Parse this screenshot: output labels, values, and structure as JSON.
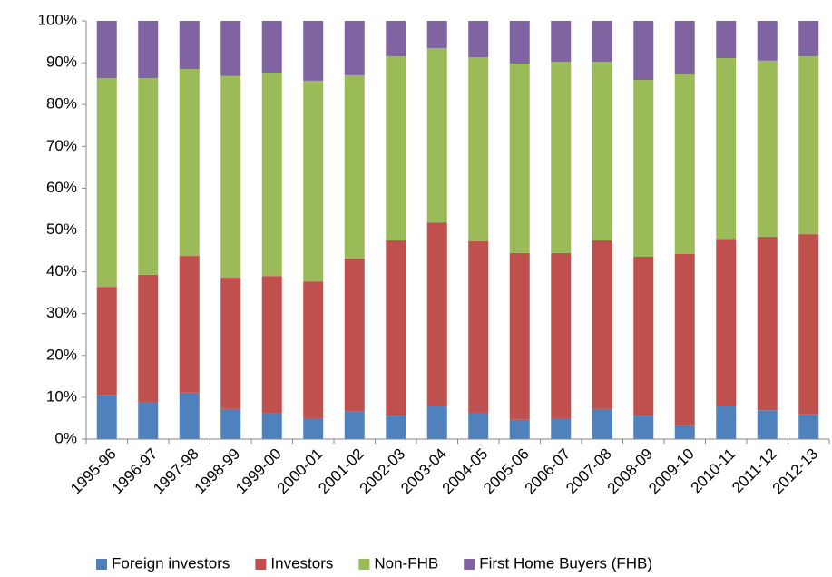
{
  "chart_data": {
    "type": "stacked-bar",
    "categories": [
      "1995-96",
      "1996-97",
      "1997-98",
      "1998-99",
      "1999-00",
      "2000-01",
      "2001-02",
      "2002-03",
      "2003-04",
      "2004-05",
      "2005-06",
      "2006-07",
      "2007-08",
      "2008-09",
      "2009-10",
      "2010-11",
      "2011-12",
      "2012-13"
    ],
    "series": [
      {
        "name": "Foreign investors",
        "color": "#4f81bd",
        "values": [
          10.6,
          8.9,
          11.1,
          7.2,
          6.1,
          5.0,
          6.7,
          5.6,
          7.8,
          6.3,
          4.6,
          5.0,
          7.2,
          5.6,
          3.3,
          7.8,
          6.9,
          5.9
        ]
      },
      {
        "name": "Investors",
        "color": "#c0504d",
        "values": [
          25.8,
          30.4,
          32.7,
          31.4,
          32.9,
          32.7,
          36.5,
          41.9,
          44.0,
          41.0,
          39.9,
          39.5,
          40.3,
          38.0,
          41.0,
          40.1,
          41.5,
          43.1
        ]
      },
      {
        "name": "Non-FHB",
        "color": "#9bbb59",
        "values": [
          49.9,
          47.0,
          44.7,
          48.2,
          48.6,
          48.0,
          43.8,
          44.0,
          41.7,
          44.0,
          45.3,
          45.7,
          42.7,
          42.3,
          42.9,
          43.2,
          42.1,
          42.5
        ]
      },
      {
        "name": "First Home Buyers (FHB)",
        "color": "#8064a2",
        "values": [
          13.7,
          13.7,
          11.5,
          13.2,
          12.4,
          14.3,
          13.0,
          8.5,
          6.5,
          8.7,
          10.2,
          9.8,
          9.8,
          14.1,
          12.8,
          8.9,
          9.5,
          8.5
        ]
      }
    ],
    "ylim": [
      0,
      100
    ],
    "yticks": [
      {
        "value": 0,
        "label": "0%"
      },
      {
        "value": 10,
        "label": "10%"
      },
      {
        "value": 20,
        "label": "20%"
      },
      {
        "value": 30,
        "label": "30%"
      },
      {
        "value": 40,
        "label": "40%"
      },
      {
        "value": 50,
        "label": "50%"
      },
      {
        "value": 60,
        "label": "60%"
      },
      {
        "value": 70,
        "label": "70%"
      },
      {
        "value": 80,
        "label": "80%"
      },
      {
        "value": 90,
        "label": "90%"
      },
      {
        "value": 100,
        "label": "100%"
      }
    ],
    "legend": "bottom"
  }
}
